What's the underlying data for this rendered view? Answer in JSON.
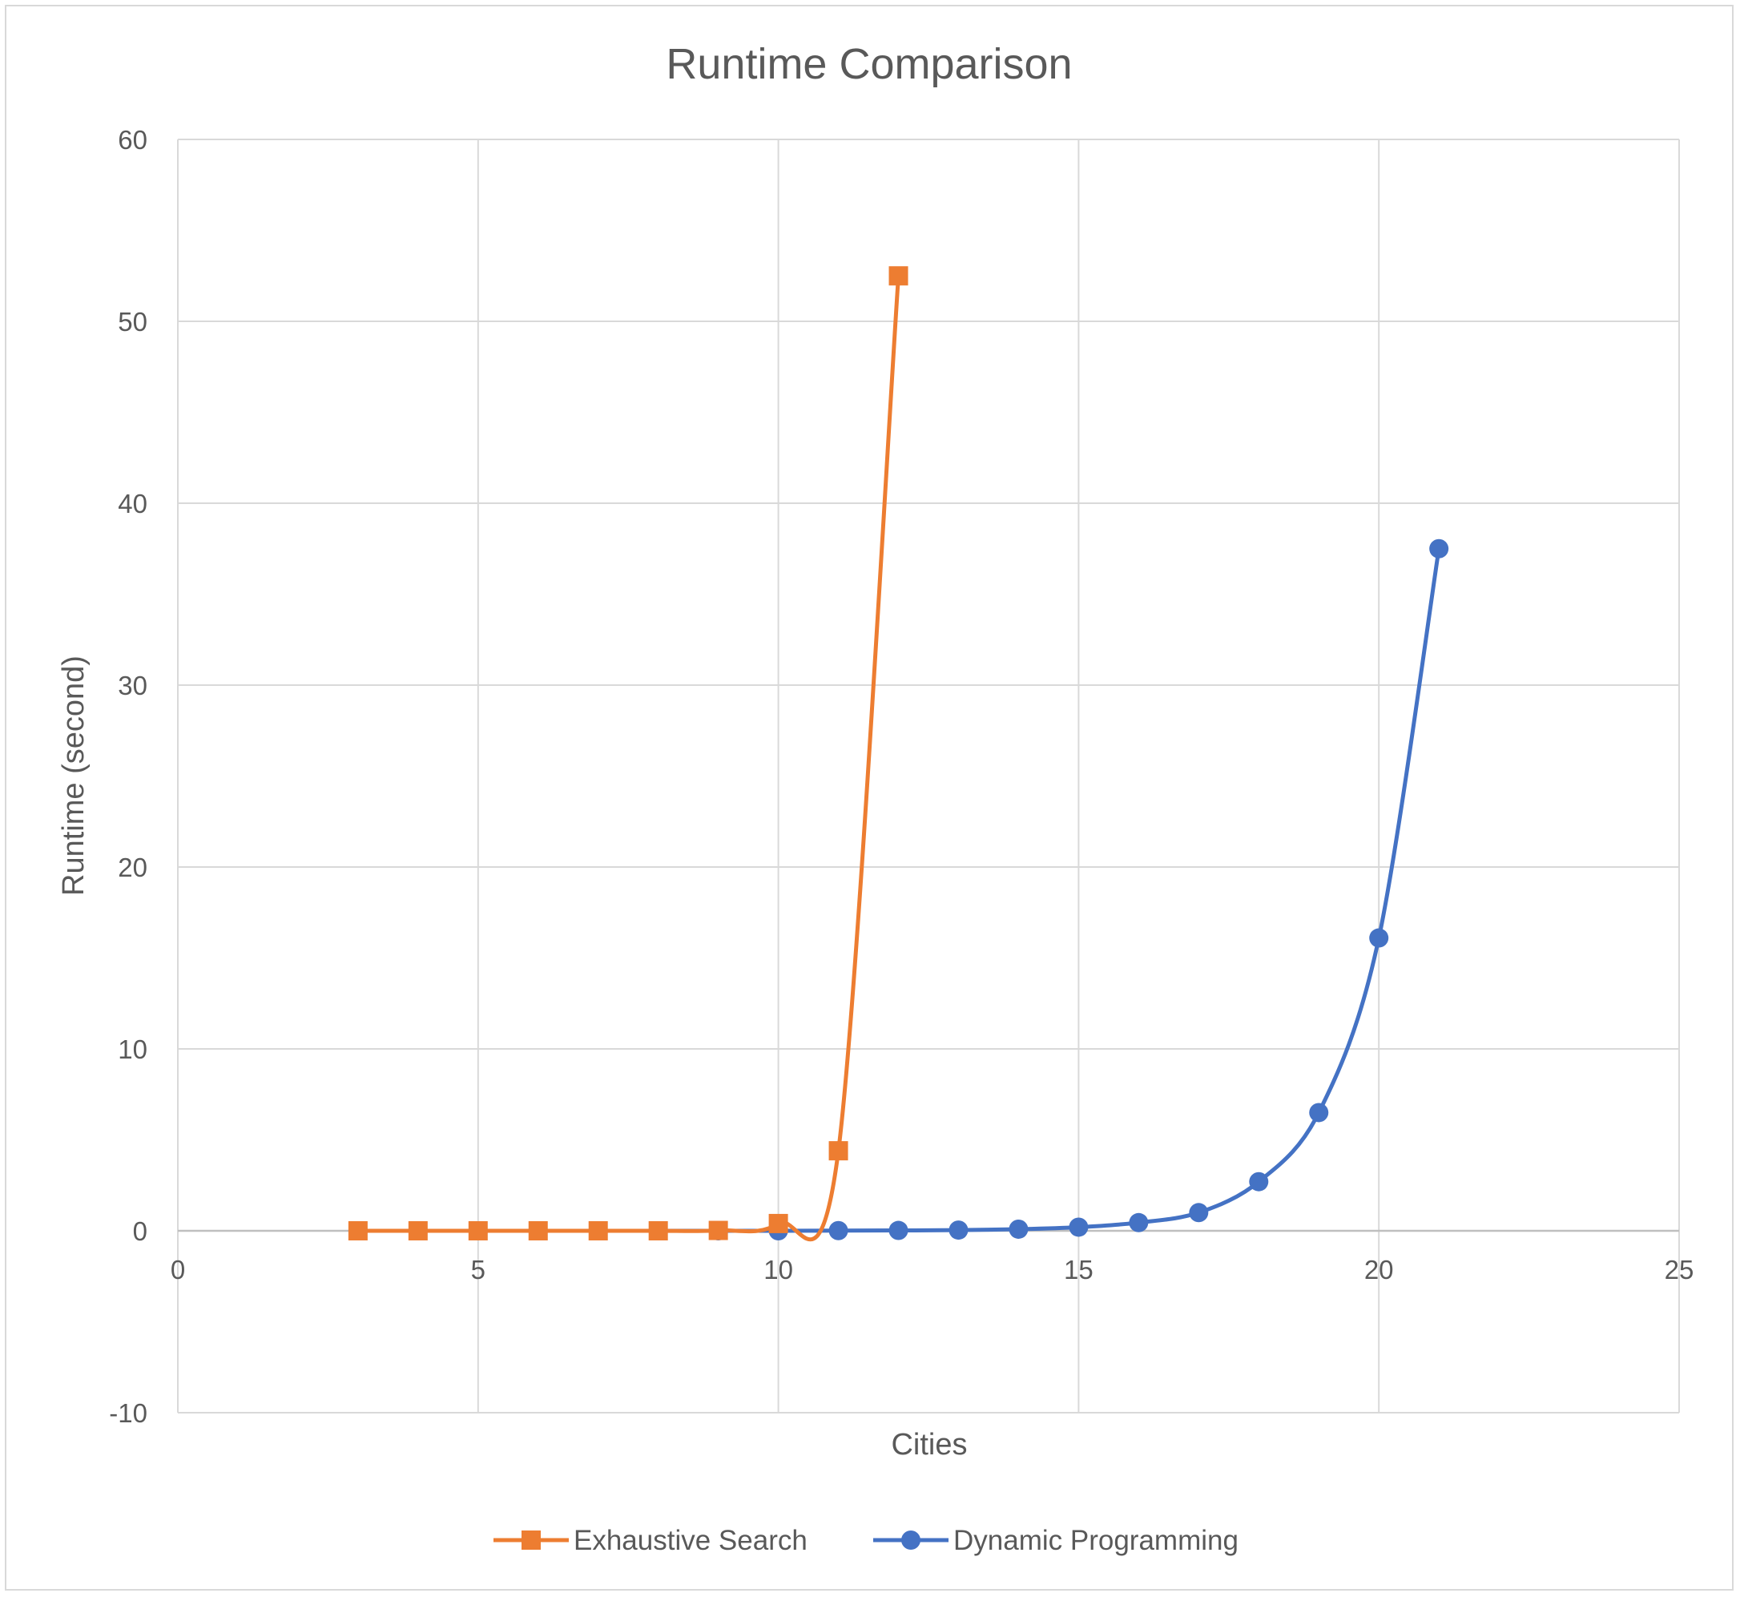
{
  "chart_data": {
    "type": "scatter",
    "title": "Runtime Comparison",
    "xlabel": "Cities",
    "ylabel": "Runtime (second)",
    "xlim": [
      0,
      25
    ],
    "ylim": [
      -10,
      60
    ],
    "xticks": [
      0,
      5,
      10,
      15,
      20,
      25
    ],
    "yticks": [
      -10,
      0,
      10,
      20,
      30,
      40,
      50,
      60
    ],
    "grid": true,
    "smooth": true,
    "legend_position": "bottom",
    "series": [
      {
        "name": "Exhaustive Search",
        "color": "#ed7d31",
        "marker": "square",
        "x": [
          3,
          4,
          5,
          6,
          7,
          8,
          9,
          10,
          11,
          12
        ],
        "y": [
          0,
          0,
          0,
          0,
          0,
          0,
          0.02,
          0.4,
          4.4,
          52.5
        ]
      },
      {
        "name": "Dynamic Programming",
        "color": "#4472c4",
        "marker": "circle",
        "x": [
          3,
          4,
          5,
          6,
          7,
          8,
          9,
          10,
          11,
          12,
          13,
          14,
          15,
          16,
          17,
          18,
          19,
          20,
          21
        ],
        "y": [
          0,
          0,
          0,
          0,
          0,
          0,
          0,
          0,
          0.01,
          0.02,
          0.04,
          0.09,
          0.2,
          0.45,
          1.0,
          2.7,
          6.5,
          16.1,
          37.5
        ]
      }
    ]
  }
}
